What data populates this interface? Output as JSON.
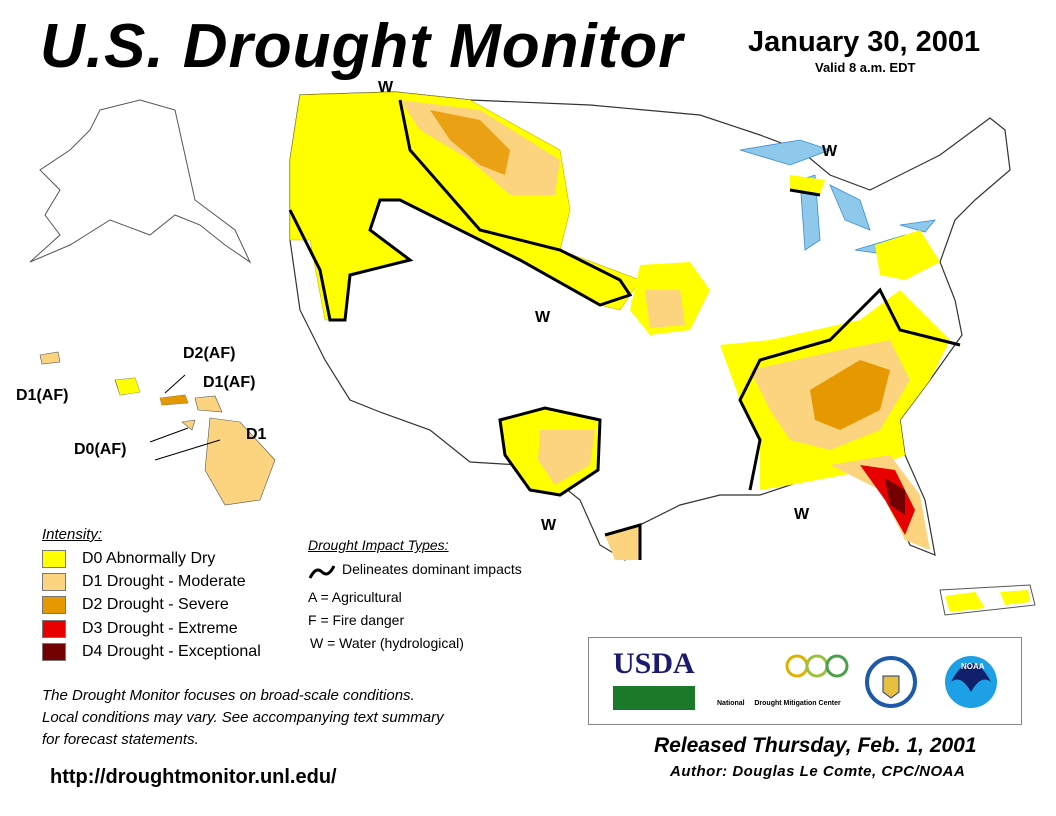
{
  "header": {
    "title": "U.S. Drought Monitor",
    "date": "January 30, 2001",
    "valid": "Valid 8 a.m. EDT"
  },
  "legend": {
    "title": "Intensity:",
    "items": [
      {
        "label": "D0 Abnormally Dry",
        "color": "#ffff00"
      },
      {
        "label": "D1 Drought - Moderate",
        "color": "#fcd37f"
      },
      {
        "label": "D2 Drought - Severe",
        "color": "#e69800"
      },
      {
        "label": "D3 Drought - Extreme",
        "color": "#e60000"
      },
      {
        "label": "D4 Drought - Exceptional",
        "color": "#730000"
      }
    ]
  },
  "impacts": {
    "title": "Drought Impact Types:",
    "line_label": "Delineates dominant impacts",
    "types": [
      "A = Agricultural",
      "F = Fire danger",
      "W = Water (hydrological)"
    ]
  },
  "map_labels": {
    "w": "W",
    "hawaii": [
      "D1(AF)",
      "D2(AF)",
      "D1(AF)",
      "D0(AF)",
      "D1"
    ]
  },
  "note": [
    "The Drought Monitor focuses on broad-scale conditions.",
    "Local conditions may vary. See accompanying text summary",
    "for forecast statements."
  ],
  "url": "http://droughtmonitor.unl.edu/",
  "logos": {
    "usda": "USDA",
    "ndmc_left": "National",
    "ndmc_right": "Drought Mitigation Center",
    "noaa": "NOAA"
  },
  "footer": {
    "released": "Released Thursday, Feb. 1, 2001",
    "author": "Author: Douglas Le Comte, CPC/NOAA"
  }
}
